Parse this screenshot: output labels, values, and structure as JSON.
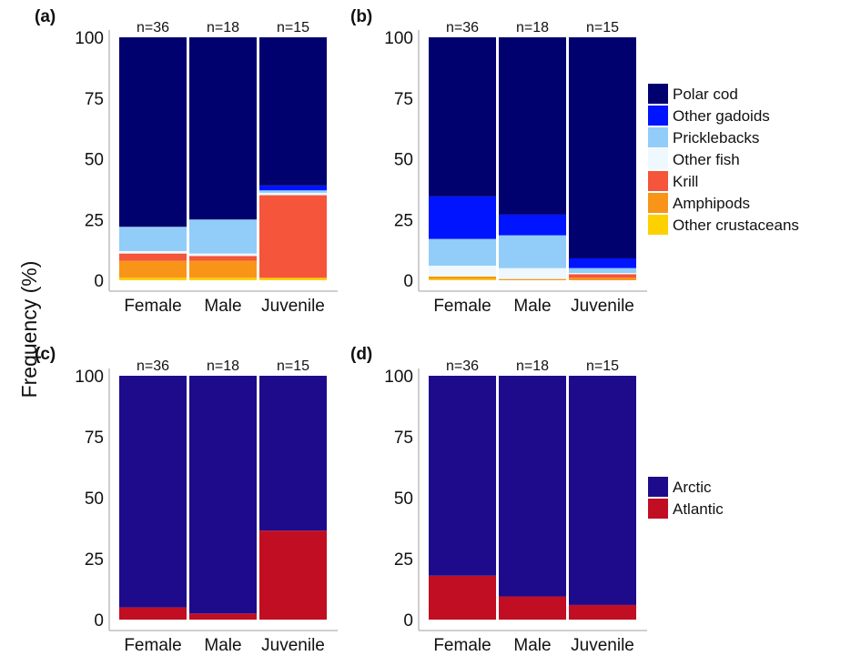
{
  "ylabel": "Frequency (%)",
  "legend_prey": {
    "items": [
      {
        "label": "Polar cod",
        "color": "#00006e"
      },
      {
        "label": "Other gadoids",
        "color": "#0014ff"
      },
      {
        "label": "Pricklebacks",
        "color": "#91cdf8"
      },
      {
        "label": "Other fish",
        "color": "#eef8fe"
      },
      {
        "label": "Krill",
        "color": "#f4553b"
      },
      {
        "label": "Amphipods",
        "color": "#f89519"
      },
      {
        "label": "Other crustaceans",
        "color": "#fdd000"
      }
    ]
  },
  "legend_origin": {
    "items": [
      {
        "label": "Arctic",
        "color": "#1e0b8c"
      },
      {
        "label": "Atlantic",
        "color": "#c20e23"
      }
    ]
  },
  "chart_data": [
    {
      "panel": "(a)",
      "type": "bar",
      "stacked": true,
      "categories": [
        "Female",
        "Male",
        "Juvenile"
      ],
      "n_labels": [
        "n=36",
        "n=18",
        "n=15"
      ],
      "ylim": [
        0,
        100
      ],
      "yticks": [
        "0",
        "25",
        "50",
        "75",
        "100"
      ],
      "series": [
        {
          "name": "Other crustaceans",
          "values": [
            1,
            1,
            1
          ]
        },
        {
          "name": "Amphipods",
          "values": [
            7,
            7,
            0
          ]
        },
        {
          "name": "Krill",
          "values": [
            3,
            2,
            34
          ]
        },
        {
          "name": "Other fish",
          "values": [
            1,
            1,
            1
          ]
        },
        {
          "name": "Pricklebacks",
          "values": [
            10,
            14,
            1
          ]
        },
        {
          "name": "Other gadoids",
          "values": [
            0,
            0,
            2
          ]
        },
        {
          "name": "Polar cod",
          "values": [
            78,
            75,
            61
          ]
        }
      ]
    },
    {
      "panel": "(b)",
      "type": "bar",
      "stacked": true,
      "categories": [
        "Female",
        "Male",
        "Juvenile"
      ],
      "n_labels": [
        "n=36",
        "n=18",
        "n=15"
      ],
      "ylim": [
        0,
        100
      ],
      "yticks": [
        "0",
        "25",
        "50",
        "75",
        "100"
      ],
      "series": [
        {
          "name": "Other crustaceans",
          "values": [
            0.5,
            0,
            0
          ]
        },
        {
          "name": "Amphipods",
          "values": [
            1,
            0.5,
            1
          ]
        },
        {
          "name": "Krill",
          "values": [
            0,
            0,
            1.5
          ]
        },
        {
          "name": "Other fish",
          "values": [
            4.5,
            4.5,
            0.5
          ]
        },
        {
          "name": "Pricklebacks",
          "values": [
            11,
            13.5,
            2
          ]
        },
        {
          "name": "Other gadoids",
          "values": [
            17.5,
            8.5,
            4
          ]
        },
        {
          "name": "Polar cod",
          "values": [
            65.5,
            73,
            91
          ]
        }
      ]
    },
    {
      "panel": "(c)",
      "type": "bar",
      "stacked": true,
      "categories": [
        "Female",
        "Male",
        "Juvenile"
      ],
      "n_labels": [
        "n=36",
        "n=18",
        "n=15"
      ],
      "ylim": [
        0,
        100
      ],
      "yticks": [
        "0",
        "25",
        "50",
        "75",
        "100"
      ],
      "series": [
        {
          "name": "Atlantic",
          "values": [
            5,
            2.5,
            36.5
          ]
        },
        {
          "name": "Arctic",
          "values": [
            95,
            97.5,
            63.5
          ]
        }
      ]
    },
    {
      "panel": "(d)",
      "type": "bar",
      "stacked": true,
      "categories": [
        "Female",
        "Male",
        "Juvenile"
      ],
      "n_labels": [
        "n=36",
        "n=18",
        "n=15"
      ],
      "ylim": [
        0,
        100
      ],
      "yticks": [
        "0",
        "25",
        "50",
        "75",
        "100"
      ],
      "series": [
        {
          "name": "Atlantic",
          "values": [
            18,
            9.5,
            6
          ]
        },
        {
          "name": "Arctic",
          "values": [
            82,
            90.5,
            94
          ]
        }
      ]
    }
  ]
}
